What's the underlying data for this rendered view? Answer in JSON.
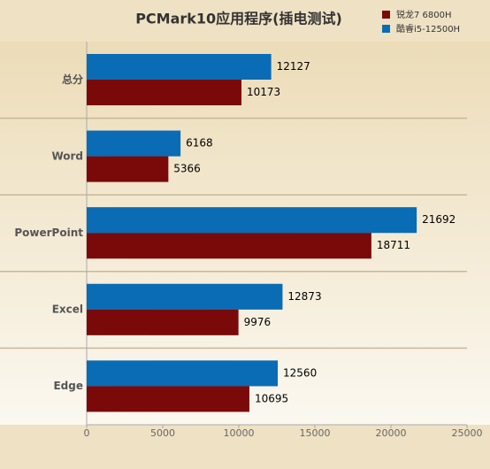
{
  "chart_data": {
    "type": "bar",
    "orientation": "horizontal",
    "title": "PCMark10应用程序(插电测试)",
    "categories": [
      "总分",
      "Word",
      "PowerPoint",
      "Excel",
      "Edge"
    ],
    "series": [
      {
        "name": "锐龙7 6800H",
        "color": "#7a0a0a",
        "values": [
          10173,
          5366,
          18711,
          9976,
          10695
        ]
      },
      {
        "name": "酷睿i5-12500H",
        "color": "#0a6cb4",
        "values": [
          12127,
          6168,
          21692,
          12873,
          12560
        ]
      }
    ],
    "xlim": [
      0,
      25000
    ],
    "xticks": [
      0,
      5000,
      10000,
      15000,
      20000,
      25000
    ],
    "legend": "top-right"
  }
}
